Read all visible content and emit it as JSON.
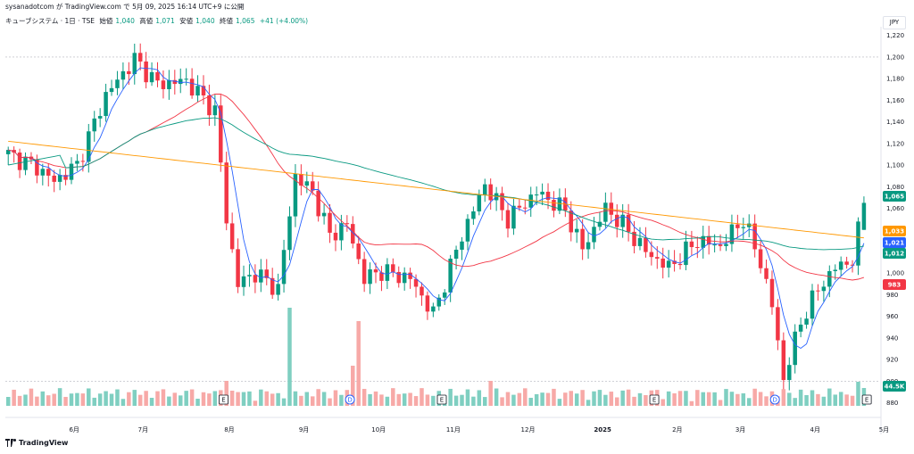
{
  "header": {
    "publisher": "sysanadotcom",
    "text": "sysanadotcom が TradingView.com で 5月 09, 2025 16:14 UTC+9 に公開"
  },
  "legend": {
    "symbol": "キューブシステム · 1日 · TSE",
    "open_label": "始値",
    "open": "1,040",
    "high_label": "高値",
    "high": "1,071",
    "low_label": "安値",
    "low": "1,040",
    "close_label": "終値",
    "close": "1,065",
    "change": "+41 (+4.00%)"
  },
  "currency": "JPY",
  "footer": {
    "brand": "TradingView"
  },
  "colors": {
    "up": "#089981",
    "down": "#f23645",
    "vol_up": "#7fcfc1",
    "vol_down": "#f7a9a7",
    "ma_fast": "#2962ff",
    "ma_mid": "#f23645",
    "ma_slow": "#089981",
    "ma_long": "#ff9800"
  },
  "chart_data": {
    "type": "candlestick",
    "title": "キューブシステム · 1日 · TSE",
    "y_axis": {
      "range": [
        873,
        1228
      ],
      "ticks": [
        880,
        900,
        920,
        940,
        960,
        980,
        1000,
        1020,
        1040,
        1060,
        1080,
        1100,
        1120,
        1140,
        1160,
        1180,
        1200,
        1220
      ]
    },
    "x_axis": {
      "ticks": [
        "6月",
        "7月",
        "8月",
        "9月",
        "10月",
        "11月",
        "12月",
        "2025",
        "2月",
        "3月",
        "4月",
        "5月"
      ]
    },
    "ohlc_anchors": [
      {
        "t": 0,
        "close": 1110
      },
      {
        "t": 5,
        "close": 1098
      },
      {
        "t": 8,
        "close": 1085
      },
      {
        "t": 12,
        "close": 1100
      },
      {
        "t": 17,
        "close": 1165
      },
      {
        "t": 22,
        "close": 1198
      },
      {
        "t": 26,
        "close": 1175
      },
      {
        "t": 31,
        "close": 1178
      },
      {
        "t": 36,
        "close": 1150
      },
      {
        "t": 38,
        "close": 1050
      },
      {
        "t": 40,
        "close": 990
      },
      {
        "t": 43,
        "close": 1000
      },
      {
        "t": 47,
        "close": 985
      },
      {
        "t": 50,
        "close": 1090
      },
      {
        "t": 53,
        "close": 1075
      },
      {
        "t": 56,
        "close": 1035
      },
      {
        "t": 59,
        "close": 1045
      },
      {
        "t": 62,
        "close": 995
      },
      {
        "t": 65,
        "close": 1002
      },
      {
        "t": 70,
        "close": 995
      },
      {
        "t": 74,
        "close": 962
      },
      {
        "t": 79,
        "close": 1035
      },
      {
        "t": 83,
        "close": 1082
      },
      {
        "t": 87,
        "close": 1050
      },
      {
        "t": 92,
        "close": 1075
      },
      {
        "t": 97,
        "close": 1058
      },
      {
        "t": 100,
        "close": 1022
      },
      {
        "t": 104,
        "close": 1060
      },
      {
        "t": 107,
        "close": 1045
      },
      {
        "t": 111,
        "close": 1020
      },
      {
        "t": 115,
        "close": 1005
      },
      {
        "t": 120,
        "close": 1030
      },
      {
        "t": 124,
        "close": 1025
      },
      {
        "t": 128,
        "close": 1050
      },
      {
        "t": 131,
        "close": 1010
      },
      {
        "t": 133,
        "close": 970
      },
      {
        "t": 135,
        "close": 902
      },
      {
        "t": 138,
        "close": 955
      },
      {
        "t": 141,
        "close": 985
      },
      {
        "t": 144,
        "close": 1005
      },
      {
        "t": 147,
        "close": 1012
      },
      {
        "t": 149,
        "close": 1065
      }
    ],
    "last_bar": {
      "open": 1040,
      "high": 1071,
      "low": 1040,
      "close": 1065,
      "change": "+41 (+4.00%)"
    },
    "volume_last": "44.5K",
    "events": [
      {
        "label": "E",
        "t": 38
      },
      {
        "label": "D",
        "t": 60
      },
      {
        "label": "E",
        "t": 76
      },
      {
        "label": "E",
        "t": 113
      },
      {
        "label": "D",
        "t": 134
      },
      {
        "label": "E",
        "t": 150
      }
    ],
    "price_labels": [
      {
        "value": "1,065",
        "color": "#089981"
      },
      {
        "value": "1,033",
        "color": "#ff9800"
      },
      {
        "value": "1,021",
        "color": "#2962ff"
      },
      {
        "value": "1,012",
        "color": "#089981"
      },
      {
        "value": "983",
        "color": "#f23645"
      },
      {
        "value": "44.5K",
        "color": "#089981"
      }
    ],
    "series": [
      {
        "name": "Price",
        "type": "candlestick"
      },
      {
        "name": "MA fast",
        "color": "#2962ff"
      },
      {
        "name": "MA mid",
        "color": "#f23645"
      },
      {
        "name": "MA slow",
        "color": "#089981"
      },
      {
        "name": "MA long",
        "color": "#ff9800"
      },
      {
        "name": "Volume",
        "type": "bar"
      }
    ]
  }
}
